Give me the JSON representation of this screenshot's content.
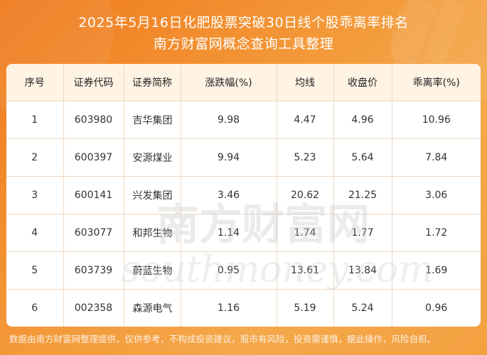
{
  "header": {
    "title_line1": "2025年5月16日化肥股票突破30日线个股乖离率排名",
    "title_line2": "南方财富网概念查询工具整理"
  },
  "table": {
    "columns": [
      "序号",
      "证券代码",
      "证券简称",
      "涨跌幅(%)",
      "均线",
      "收盘价",
      "乖离率(%)"
    ],
    "rows": [
      {
        "rank": "1",
        "code": "603980",
        "name": "吉华集团",
        "change": "9.98",
        "ma": "4.47",
        "close": "4.96",
        "bias": "10.96"
      },
      {
        "rank": "2",
        "code": "600397",
        "name": "安源煤业",
        "change": "9.94",
        "ma": "5.23",
        "close": "5.64",
        "bias": "7.84"
      },
      {
        "rank": "3",
        "code": "600141",
        "name": "兴发集团",
        "change": "3.46",
        "ma": "20.62",
        "close": "21.25",
        "bias": "3.06"
      },
      {
        "rank": "4",
        "code": "603077",
        "name": "和邦生物",
        "change": "1.14",
        "ma": "1.74",
        "close": "1.77",
        "bias": "1.72"
      },
      {
        "rank": "5",
        "code": "603739",
        "name": "蔚蓝生物",
        "change": "0.95",
        "ma": "13.61",
        "close": "13.84",
        "bias": "1.69"
      },
      {
        "rank": "6",
        "code": "002358",
        "name": "森源电气",
        "change": "1.16",
        "ma": "5.19",
        "close": "5.24",
        "bias": "0.96"
      }
    ]
  },
  "watermark": {
    "line1": "南方财富网",
    "line2": "southmoney.com"
  },
  "footer": {
    "disclaimer": "数据由南方财富网整理提供，仅供参考，不构成投资建议，股市有风险，投资需谨慎，据此操作，风险自担。"
  },
  "colors": {
    "background": "#f39a3a",
    "header_row": "#fff3e4",
    "grid": "#f0d9c4"
  }
}
